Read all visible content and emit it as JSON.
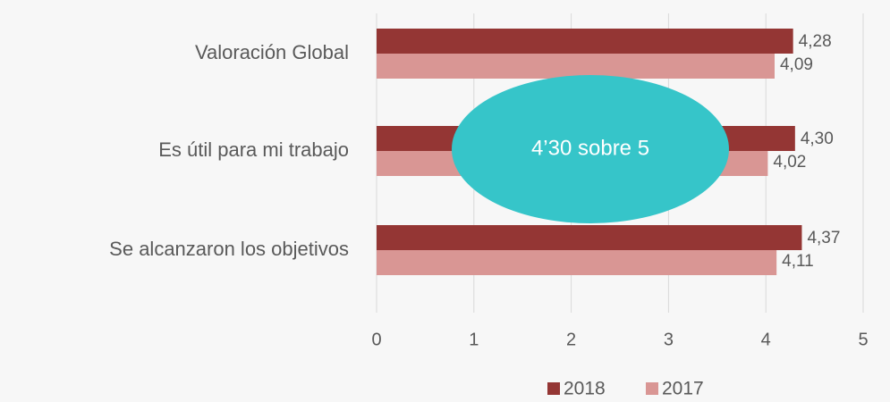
{
  "chart_data": {
    "type": "hbar",
    "categories": [
      "Valoración Global",
      "Es útil para mi trabajo",
      "Se alcanzaron los objetivos"
    ],
    "series": [
      {
        "name": "2018",
        "color": "#943634",
        "values": [
          4.28,
          4.3,
          4.37
        ],
        "value_labels": [
          "4,28",
          "4,30",
          "4,37"
        ]
      },
      {
        "name": "2017",
        "color": "#d99694",
        "values": [
          4.09,
          4.02,
          4.11
        ],
        "value_labels": [
          "4,09",
          "4,02",
          "4,11"
        ]
      }
    ],
    "xlim": [
      0,
      5
    ],
    "xticks": [
      0,
      1,
      2,
      3,
      4,
      5
    ],
    "grid": true,
    "legend": "bottom",
    "annotation": "4’30 sobre 5"
  }
}
